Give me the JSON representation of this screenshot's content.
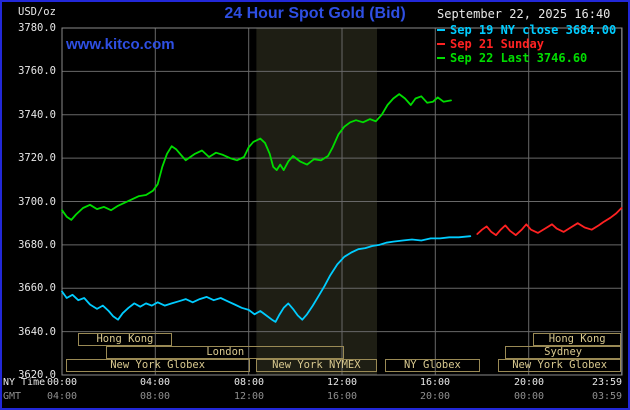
{
  "header": {
    "units": "USD/oz",
    "title": "24 Hour Spot Gold (Bid)",
    "datetime": "September 22, 2025 16:40",
    "watermark": "www.kitco.com"
  },
  "legend": [
    {
      "label": "Sep 19 NY close 3684.00",
      "color": "#00ccff"
    },
    {
      "label": "Sep 21 Sunday",
      "color": "#ff2222"
    },
    {
      "label": "Sep 22 Last 3746.60",
      "color": "#00dd00"
    }
  ],
  "axis": {
    "ny_label": "NY Time",
    "gmt_label": "GMT"
  },
  "colors": {
    "background": "#000000",
    "frame_border": "#2228d8",
    "title_blue": "#2e4fe3",
    "grid": "#686868",
    "plot_border": "#8a8a8a",
    "shade": "#1e1e14",
    "session_border": "#9a8a55",
    "session_text": "#d9c98f",
    "axis_text": "#e8e8e8",
    "gmt_text": "#8f8f8f"
  },
  "chart_data": {
    "type": "line",
    "title": "24 Hour Spot Gold (Bid)",
    "ylabel": "USD/oz",
    "ylim": [
      3620,
      3780
    ],
    "x_hours_range": [
      0,
      24
    ],
    "grid": true,
    "yticks": [
      3620,
      3640,
      3660,
      3680,
      3700,
      3720,
      3740,
      3760,
      3780
    ],
    "xticks": [
      {
        "hour": 0,
        "ny": "00:00",
        "gmt": "04:00"
      },
      {
        "hour": 4,
        "ny": "04:00",
        "gmt": "08:00"
      },
      {
        "hour": 8,
        "ny": "08:00",
        "gmt": "12:00"
      },
      {
        "hour": 12,
        "ny": "12:00",
        "gmt": "16:00"
      },
      {
        "hour": 16,
        "ny": "16:00",
        "gmt": "20:00"
      },
      {
        "hour": 20,
        "ny": "20:00",
        "gmt": "00:00"
      },
      {
        "hour": 23.983,
        "ny": "23:59",
        "gmt": "03:59"
      }
    ],
    "nymex_shade_hours": [
      8.33,
      13.5
    ],
    "series": [
      {
        "id": "sep19",
        "name": "Sep 19 NY close",
        "close": 3684.0,
        "color": "#00ccff",
        "points": [
          [
            0,
            3658.5
          ],
          [
            0.2,
            3655.5
          ],
          [
            0.45,
            3657
          ],
          [
            0.7,
            3654.5
          ],
          [
            0.95,
            3655.5
          ],
          [
            1.2,
            3652.5
          ],
          [
            1.5,
            3650.5
          ],
          [
            1.75,
            3652
          ],
          [
            2.0,
            3649.5
          ],
          [
            2.2,
            3647
          ],
          [
            2.4,
            3645.5
          ],
          [
            2.6,
            3648.5
          ],
          [
            2.85,
            3651
          ],
          [
            3.1,
            3653
          ],
          [
            3.35,
            3651.5
          ],
          [
            3.6,
            3653
          ],
          [
            3.85,
            3652
          ],
          [
            4.1,
            3653.5
          ],
          [
            4.4,
            3652
          ],
          [
            4.7,
            3653
          ],
          [
            5.0,
            3654
          ],
          [
            5.3,
            3655
          ],
          [
            5.6,
            3653.5
          ],
          [
            5.9,
            3655
          ],
          [
            6.2,
            3656
          ],
          [
            6.5,
            3654.5
          ],
          [
            6.8,
            3655.5
          ],
          [
            7.1,
            3654
          ],
          [
            7.4,
            3652.5
          ],
          [
            7.7,
            3651
          ],
          [
            8.0,
            3650
          ],
          [
            8.25,
            3648
          ],
          [
            8.5,
            3649.5
          ],
          [
            8.75,
            3647.5
          ],
          [
            9.0,
            3645.5
          ],
          [
            9.15,
            3644.5
          ],
          [
            9.3,
            3647.5
          ],
          [
            9.5,
            3651
          ],
          [
            9.7,
            3653
          ],
          [
            9.9,
            3650.5
          ],
          [
            10.1,
            3647.5
          ],
          [
            10.3,
            3645.5
          ],
          [
            10.5,
            3648
          ],
          [
            10.75,
            3652
          ],
          [
            11.0,
            3656.5
          ],
          [
            11.25,
            3661
          ],
          [
            11.5,
            3666
          ],
          [
            11.8,
            3671
          ],
          [
            12.1,
            3674.5
          ],
          [
            12.4,
            3676.5
          ],
          [
            12.7,
            3678
          ],
          [
            13.0,
            3678.5
          ],
          [
            13.3,
            3679.5
          ],
          [
            13.6,
            3680
          ],
          [
            13.9,
            3681
          ],
          [
            14.2,
            3681.5
          ],
          [
            14.6,
            3682
          ],
          [
            15.0,
            3682.5
          ],
          [
            15.4,
            3682
          ],
          [
            15.8,
            3683
          ],
          [
            16.2,
            3683
          ],
          [
            16.6,
            3683.5
          ],
          [
            17.0,
            3683.5
          ],
          [
            17.5,
            3684
          ]
        ]
      },
      {
        "id": "sep21",
        "name": "Sep 21 Sunday",
        "color": "#ff2222",
        "points": [
          [
            17.8,
            3685
          ],
          [
            18.0,
            3687
          ],
          [
            18.2,
            3688.5
          ],
          [
            18.4,
            3686
          ],
          [
            18.6,
            3684.5
          ],
          [
            18.8,
            3687
          ],
          [
            19.0,
            3689
          ],
          [
            19.2,
            3686.5
          ],
          [
            19.45,
            3684.5
          ],
          [
            19.7,
            3687
          ],
          [
            19.9,
            3689.5
          ],
          [
            20.1,
            3687
          ],
          [
            20.4,
            3685.5
          ],
          [
            20.7,
            3687.5
          ],
          [
            21.0,
            3689.5
          ],
          [
            21.2,
            3687.5
          ],
          [
            21.5,
            3686
          ],
          [
            21.8,
            3688
          ],
          [
            22.1,
            3690
          ],
          [
            22.4,
            3688
          ],
          [
            22.7,
            3687
          ],
          [
            23.0,
            3689
          ],
          [
            23.2,
            3690.5
          ],
          [
            23.5,
            3692.5
          ],
          [
            23.75,
            3694.5
          ],
          [
            23.98,
            3697
          ]
        ]
      },
      {
        "id": "sep22",
        "name": "Sep 22 Last",
        "last": 3746.6,
        "color": "#00dd00",
        "points": [
          [
            0,
            3696
          ],
          [
            0.2,
            3693
          ],
          [
            0.4,
            3691.5
          ],
          [
            0.6,
            3694
          ],
          [
            0.9,
            3697
          ],
          [
            1.2,
            3698.5
          ],
          [
            1.5,
            3696.5
          ],
          [
            1.8,
            3697.5
          ],
          [
            2.1,
            3696
          ],
          [
            2.4,
            3698
          ],
          [
            2.7,
            3699.5
          ],
          [
            3.0,
            3701
          ],
          [
            3.3,
            3702.5
          ],
          [
            3.6,
            3703
          ],
          [
            3.9,
            3705
          ],
          [
            4.1,
            3708
          ],
          [
            4.3,
            3716
          ],
          [
            4.5,
            3722
          ],
          [
            4.7,
            3725.5
          ],
          [
            4.9,
            3724
          ],
          [
            5.1,
            3721.5
          ],
          [
            5.3,
            3719
          ],
          [
            5.5,
            3720.5
          ],
          [
            5.7,
            3722
          ],
          [
            6.0,
            3723.5
          ],
          [
            6.3,
            3720.5
          ],
          [
            6.6,
            3722.5
          ],
          [
            6.9,
            3721.5
          ],
          [
            7.2,
            3720
          ],
          [
            7.5,
            3719
          ],
          [
            7.8,
            3720.5
          ],
          [
            8.0,
            3725
          ],
          [
            8.2,
            3727.5
          ],
          [
            8.5,
            3729
          ],
          [
            8.7,
            3727
          ],
          [
            8.9,
            3722
          ],
          [
            9.05,
            3716
          ],
          [
            9.2,
            3714.5
          ],
          [
            9.35,
            3717
          ],
          [
            9.5,
            3714.5
          ],
          [
            9.7,
            3718.5
          ],
          [
            9.9,
            3721
          ],
          [
            10.2,
            3718.5
          ],
          [
            10.5,
            3717
          ],
          [
            10.8,
            3719.5
          ],
          [
            11.1,
            3719
          ],
          [
            11.4,
            3721
          ],
          [
            11.6,
            3725
          ],
          [
            11.85,
            3731
          ],
          [
            12.1,
            3734.5
          ],
          [
            12.35,
            3736.5
          ],
          [
            12.6,
            3737.5
          ],
          [
            12.9,
            3736.5
          ],
          [
            13.2,
            3738
          ],
          [
            13.45,
            3737
          ],
          [
            13.7,
            3740
          ],
          [
            13.95,
            3744.5
          ],
          [
            14.2,
            3747.5
          ],
          [
            14.45,
            3749.5
          ],
          [
            14.7,
            3747.5
          ],
          [
            14.95,
            3744.5
          ],
          [
            15.15,
            3747.5
          ],
          [
            15.4,
            3748.5
          ],
          [
            15.65,
            3745.5
          ],
          [
            15.9,
            3746
          ],
          [
            16.1,
            3748
          ],
          [
            16.35,
            3746
          ],
          [
            16.67,
            3746.6
          ]
        ]
      }
    ],
    "sessions": [
      {
        "label": "Hong Kong",
        "row": 0,
        "start": 0.7,
        "end": 4.7
      },
      {
        "label": "Hong Kong",
        "row": 0,
        "start": 20.2,
        "end": 23.96
      },
      {
        "label": "London",
        "row": 1,
        "start": 1.9,
        "end": 12.1
      },
      {
        "label": "Sydney",
        "row": 1,
        "start": 19.0,
        "end": 23.96
      },
      {
        "label": "New York Globex",
        "row": 2,
        "start": 0.15,
        "end": 8.05
      },
      {
        "label": "New York NYMEX",
        "row": 2,
        "start": 8.3,
        "end": 13.5
      },
      {
        "label": "NY Globex",
        "row": 2,
        "start": 13.85,
        "end": 17.9
      },
      {
        "label": "New York Globex",
        "row": 2,
        "start": 18.7,
        "end": 23.96
      }
    ]
  }
}
